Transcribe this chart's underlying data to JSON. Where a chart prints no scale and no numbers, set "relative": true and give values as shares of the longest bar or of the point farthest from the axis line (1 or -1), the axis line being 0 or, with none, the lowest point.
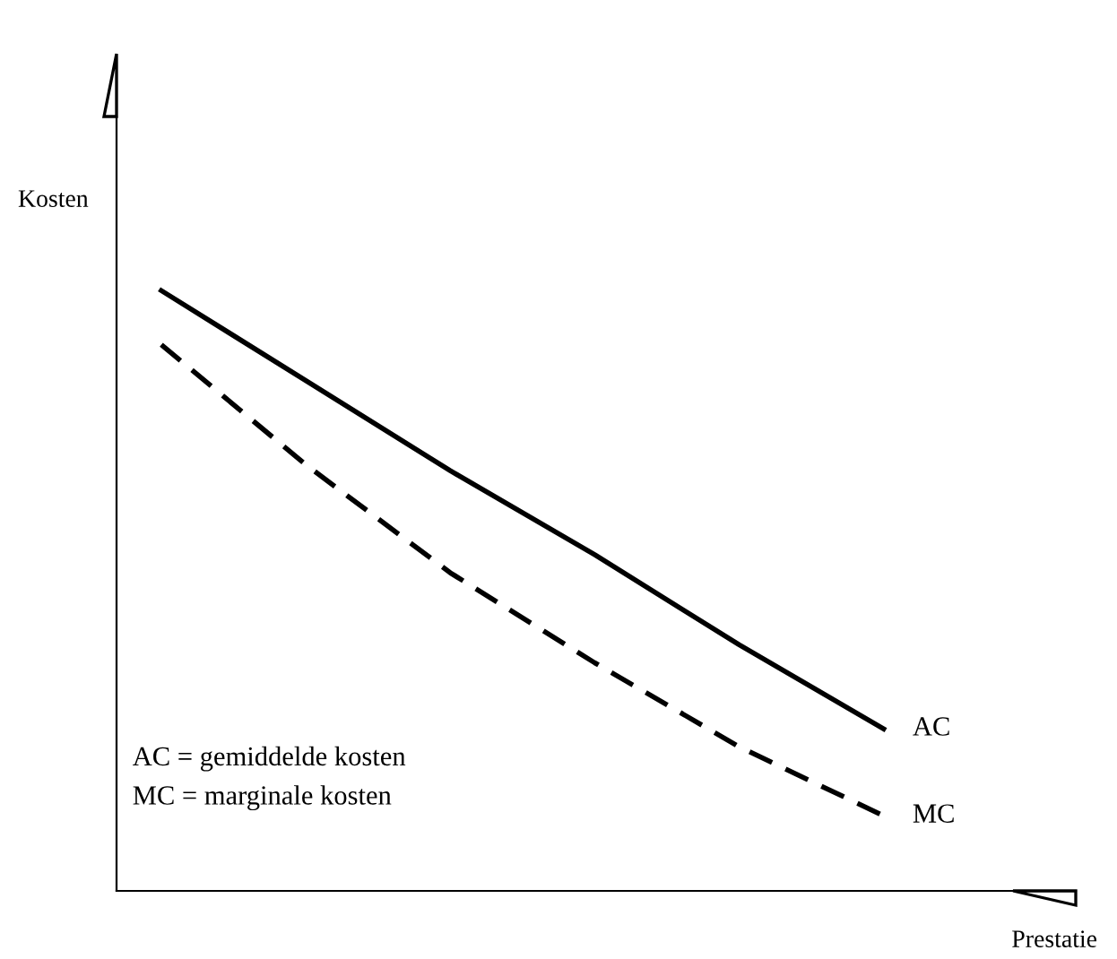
{
  "chart_data": {
    "type": "line",
    "relative": true,
    "xlabel": "Prestatie",
    "ylabel": "Kosten",
    "categories": [
      null,
      null,
      null,
      null,
      null,
      null
    ],
    "series": [
      {
        "name": "AC",
        "color": "#000000",
        "line_style": "solid",
        "values": [
          1.0,
          0.85,
          0.7,
          0.56,
          0.41,
          0.27
        ]
      },
      {
        "name": "MC",
        "color": "#000000",
        "line_style": "dashed",
        "values": [
          0.91,
          0.71,
          0.53,
          0.38,
          0.24,
          0.125
        ]
      }
    ],
    "annotations": [
      "AC = gemiddelde kosten",
      "MC = marginale kosten"
    ],
    "legend": false,
    "grid": false,
    "marker": "none"
  }
}
